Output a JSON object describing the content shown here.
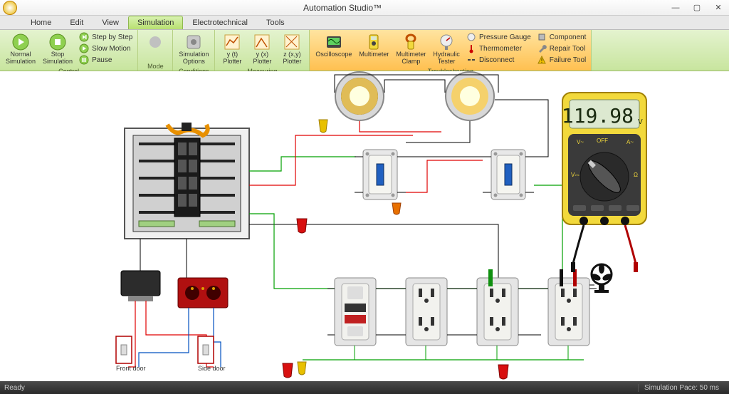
{
  "window": {
    "title": "Automation Studio™",
    "minimize": "—",
    "maximize": "▢",
    "close": "✕"
  },
  "tabs": [
    {
      "label": "Home",
      "active": false
    },
    {
      "label": "Edit",
      "active": false
    },
    {
      "label": "View",
      "active": false
    },
    {
      "label": "Simulation",
      "active": true
    },
    {
      "label": "Electrotechnical",
      "active": false
    },
    {
      "label": "Tools",
      "active": false
    }
  ],
  "ribbon": {
    "groups": [
      {
        "label": "Control",
        "items": []
      },
      {
        "label": "Mode",
        "items": []
      },
      {
        "label": "Conditions",
        "items": []
      },
      {
        "label": "Measuring",
        "items": []
      },
      {
        "label": "Troubleshooting",
        "items": []
      }
    ],
    "normal_sim": "Normal\nSimulation",
    "stop_sim": "Stop\nSimulation",
    "step": "Step by Step",
    "slow": "Slow Motion",
    "pause": "Pause",
    "sim_options": "Simulation\nOptions",
    "plotter1": "y (t)\nPlotter",
    "plotter2": "y (x)\nPlotter",
    "plotter3": "z (x,y)\nPlotter",
    "oscilloscope": "Oscilloscope",
    "multimeter": "Multimeter",
    "multimeter_clamp": "Multimeter\nClamp",
    "hydraulic": "Hydraulic\nTester",
    "pressure": "Pressure Gauge",
    "thermometer": "Thermometer",
    "disconnect": "Disconnect",
    "component": "Component",
    "repair": "Repair Tool",
    "failure": "Failure Tool"
  },
  "diagram": {
    "multimeter_value": "119.98",
    "multimeter_unit": "V",
    "front_door": "Front door",
    "side_door": "Side door",
    "colors": {
      "wire_green": "#00a000",
      "wire_red": "#e00000",
      "wire_black": "#000000",
      "wire_blue": "#0050c0",
      "connector_red": "#d81010",
      "connector_yellow": "#e8c000",
      "connector_orange": "#e87000",
      "light_glow": "#f8d060",
      "panel_bg": "#e0e0e0",
      "meter_yellow": "#f2d93c",
      "meter_dark": "#3a3a3a",
      "lcd_bg": "#dce8d0"
    }
  },
  "status": {
    "ready": "Ready",
    "center": "",
    "right": "Simulation Pace: 50 ms"
  }
}
